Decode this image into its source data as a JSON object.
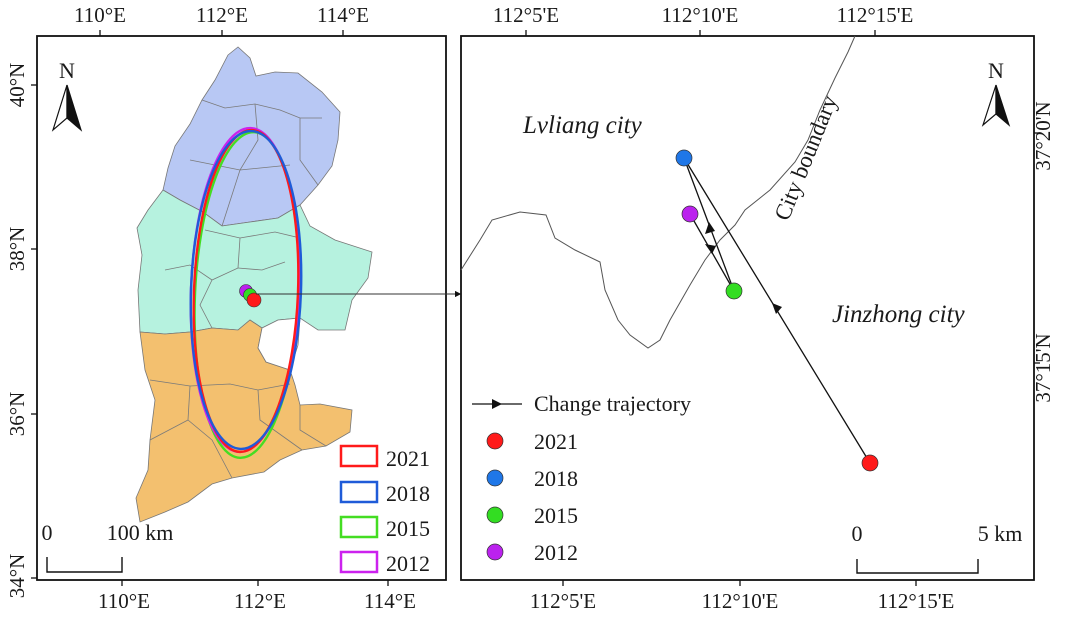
{
  "left_map": {
    "top_ticks": [
      "110°E",
      "112°E",
      "114°E"
    ],
    "bottom_ticks": [
      "110°E",
      "112°E",
      "114°E"
    ],
    "left_ticks": [
      "40°N",
      "38°N",
      "36°N",
      "34°N"
    ],
    "north_label": "N",
    "scale_zero": "0",
    "scale_label": "100 km",
    "legend": [
      {
        "year": "2021",
        "color": "#ff1a1a"
      },
      {
        "year": "2018",
        "color": "#1f5bd8"
      },
      {
        "year": "2015",
        "color": "#44dd22"
      },
      {
        "year": "2012",
        "color": "#cc22ee"
      }
    ],
    "region_colors": {
      "north": "#b8c8f4",
      "middle": "#b6f2df",
      "south": "#f3c06f"
    }
  },
  "right_map": {
    "top_ticks": [
      "112°5'E",
      "112°10'E",
      "112°15'E"
    ],
    "bottom_ticks": [
      "112°5'E",
      "112°10'E",
      "112°15'E"
    ],
    "right_ticks": [
      "37°20'N",
      "37°15'N"
    ],
    "north_label": "N",
    "city_lvliang": "Lvliang city",
    "city_jinzhong": "Jinzhong city",
    "boundary_label": "City boundary",
    "trajectory_label": "Change trajectory",
    "scale_zero": "0",
    "scale_label": "5 km",
    "points": [
      {
        "year": "2021",
        "color": "#ff1a1a"
      },
      {
        "year": "2018",
        "color": "#1f77e8"
      },
      {
        "year": "2015",
        "color": "#33dd22"
      },
      {
        "year": "2012",
        "color": "#bb22ee"
      }
    ]
  }
}
